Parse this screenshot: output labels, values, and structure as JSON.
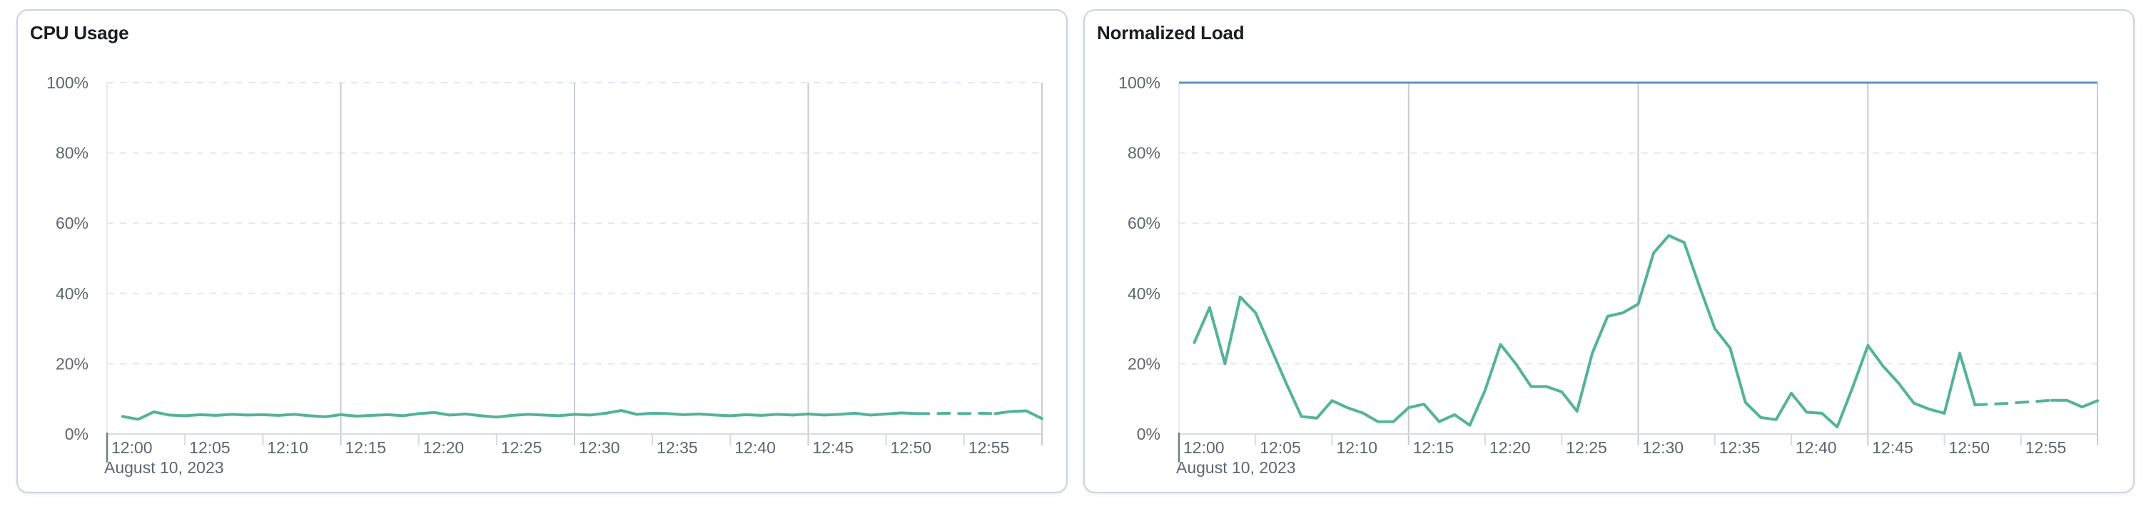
{
  "page": {
    "background": "#ffffff"
  },
  "chart_data": [
    {
      "type": "line",
      "title": "CPU Usage",
      "unit": "%",
      "x_axis": {
        "start_time": "12:00",
        "end_time": "13:00",
        "tick_labels": [
          "12:00",
          "12:05",
          "12:10",
          "12:15",
          "12:20",
          "12:25",
          "12:30",
          "12:35",
          "12:40",
          "12:45",
          "12:50",
          "12:55"
        ],
        "tick_interval_minutes": 5,
        "date_label": "August 10, 2023"
      },
      "y_axis": {
        "tick_labels": [
          "0%",
          "20%",
          "40%",
          "60%",
          "80%",
          "100%"
        ],
        "ylim": [
          0,
          100
        ]
      },
      "grid": {
        "horizontal_style": "dashed",
        "vertical_emphasis_minutes": [
          15,
          30,
          45,
          60
        ],
        "minor_tick_minutes": [
          5,
          10,
          20,
          25,
          35,
          40,
          50,
          55
        ]
      },
      "threshold_line": null,
      "series": [
        {
          "name": "cpu-usage",
          "color": "#54b399",
          "start_minute": 1,
          "interval_minutes": 1,
          "dashed_segment_minutes": [
            52,
            57
          ],
          "values": [
            5.0,
            4.2,
            6.3,
            5.4,
            5.2,
            5.5,
            5.3,
            5.6,
            5.4,
            5.5,
            5.3,
            5.6,
            5.2,
            4.9,
            5.5,
            5.1,
            5.3,
            5.5,
            5.2,
            5.8,
            6.1,
            5.4,
            5.7,
            5.2,
            4.8,
            5.3,
            5.6,
            5.4,
            5.2,
            5.6,
            5.4,
            5.9,
            6.7,
            5.6,
            5.9,
            5.8,
            5.5,
            5.7,
            5.4,
            5.2,
            5.5,
            5.3,
            5.6,
            5.4,
            5.7,
            5.4,
            5.6,
            5.9,
            5.4,
            5.7,
            6.0,
            5.8,
            5.8,
            5.9,
            5.8,
            5.9,
            5.8,
            6.4,
            6.6,
            4.4
          ]
        }
      ]
    },
    {
      "type": "line",
      "title": "Normalized Load",
      "unit": "%",
      "x_axis": {
        "start_time": "12:00",
        "end_time": "13:00",
        "tick_labels": [
          "12:00",
          "12:05",
          "12:10",
          "12:15",
          "12:20",
          "12:25",
          "12:30",
          "12:35",
          "12:40",
          "12:45",
          "12:50",
          "12:55"
        ],
        "tick_interval_minutes": 5,
        "date_label": "August 10, 2023"
      },
      "y_axis": {
        "tick_labels": [
          "0%",
          "20%",
          "40%",
          "60%",
          "80%",
          "100%"
        ],
        "ylim": [
          0,
          100
        ]
      },
      "grid": {
        "horizontal_style": "dashed",
        "vertical_emphasis_minutes": [
          15,
          30,
          45,
          60
        ],
        "minor_tick_minutes": [
          5,
          10,
          20,
          25,
          35,
          40,
          50,
          55
        ]
      },
      "threshold_line": {
        "value": 100,
        "color": "#6092c0",
        "style": "solid"
      },
      "series": [
        {
          "name": "normalized-load",
          "color": "#54b399",
          "start_minute": 1,
          "interval_minutes": 1,
          "dashed_segment_minutes": [
            52,
            57
          ],
          "values": [
            26,
            36,
            20,
            39,
            34.5,
            24.5,
            14.5,
            5,
            4.5,
            9.5,
            7.5,
            6,
            3.5,
            3.5,
            7.5,
            8.5,
            3.5,
            5.5,
            2.5,
            12.5,
            25.5,
            20,
            13.5,
            13.5,
            12,
            6.5,
            23,
            33.5,
            34.5,
            37,
            51.5,
            56.5,
            54.5,
            42,
            30,
            24.5,
            9,
            4.7,
            4.1,
            11.6,
            6.2,
            5.9,
            2,
            13.2,
            25.2,
            19.3,
            14.5,
            8.8,
            7.1,
            5.9,
            23,
            8.3,
            8.5,
            8.7,
            9,
            9.3,
            9.6,
            9.6,
            7.7,
            9.5
          ]
        }
      ]
    }
  ],
  "styles": {
    "series_green": "#54b399",
    "threshold_blue": "#6092c0",
    "grid_dashed": "#e4e7f0",
    "grid_emphasis": "#c8cbd2",
    "axis_line": "#d8dbe2",
    "label_color": "#5f6570",
    "title_color": "#1a1d23",
    "card_border": "#ccd3e0"
  }
}
